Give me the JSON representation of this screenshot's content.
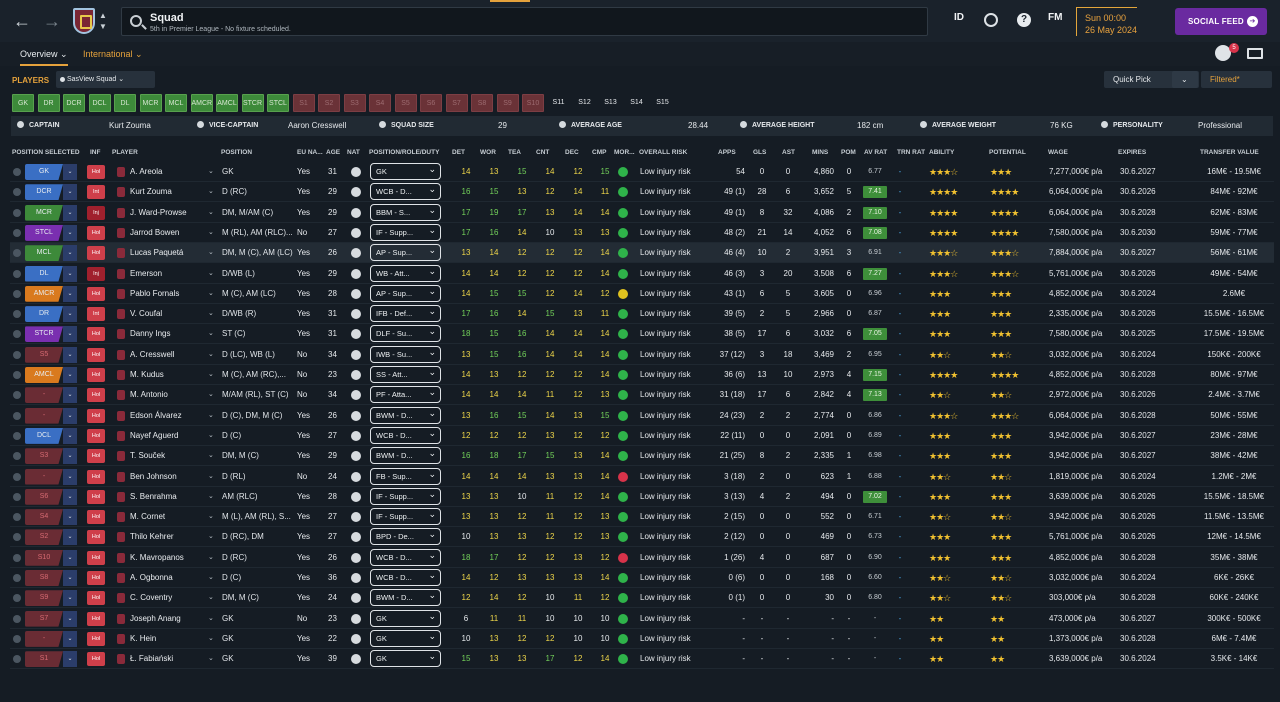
{
  "header": {
    "title": "Squad",
    "subtitle": "5th in Premier League - No fixture scheduled.",
    "id_label": "ID",
    "fm_label": "FM",
    "date_time": "Sun 00:00",
    "date_day": "26 May 2024",
    "social_feed": "SOCIAL FEED",
    "notifications": "5"
  },
  "tabs": [
    {
      "label": "Overview ⌄"
    },
    {
      "label": "International ⌄"
    }
  ],
  "toolbar": {
    "players_label": "PLAYERS",
    "view": "SasView Squad ⌄",
    "quick_pick": "Quick Pick",
    "quick_pick_caret": "⌄",
    "filtered": "Filtered*"
  },
  "chips": [
    {
      "label": "GK",
      "st": "g"
    },
    {
      "label": "DR",
      "st": "g"
    },
    {
      "label": "DCR",
      "st": "g"
    },
    {
      "label": "DCL",
      "st": "g"
    },
    {
      "label": "DL",
      "st": "g"
    },
    {
      "label": "MCR",
      "st": "g"
    },
    {
      "label": "MCL",
      "st": "g"
    },
    {
      "label": "AMCR",
      "st": "g"
    },
    {
      "label": "AMCL",
      "st": "g"
    },
    {
      "label": "STCR",
      "st": "g"
    },
    {
      "label": "STCL",
      "st": "g"
    },
    {
      "label": "S1",
      "st": "r"
    },
    {
      "label": "S2",
      "st": "r"
    },
    {
      "label": "S3",
      "st": "r"
    },
    {
      "label": "S4",
      "st": "r"
    },
    {
      "label": "S5",
      "st": "r"
    },
    {
      "label": "S6",
      "st": "r"
    },
    {
      "label": "S7",
      "st": "r"
    },
    {
      "label": "S8",
      "st": "r"
    },
    {
      "label": "S9",
      "st": "r"
    },
    {
      "label": "S10",
      "st": "r"
    },
    {
      "label": "S11",
      "st": "s"
    },
    {
      "label": "S12",
      "st": "s"
    },
    {
      "label": "S13",
      "st": "s"
    },
    {
      "label": "S14",
      "st": "s"
    },
    {
      "label": "S15",
      "st": "s"
    }
  ],
  "summary": {
    "captain_label": "CAPTAIN",
    "captain": "Kurt Zouma",
    "vice_label": "VICE-CAPTAIN",
    "vice": "Aaron Cresswell",
    "size_label": "SQUAD SIZE",
    "size": "29",
    "age_label": "AVERAGE AGE",
    "age": "28.44",
    "height_label": "AVERAGE HEIGHT",
    "height": "182 cm",
    "weight_label": "AVERAGE WEIGHT",
    "weight": "76 KG",
    "pers_label": "PERSONALITY",
    "pers": "Professional"
  },
  "columns": [
    "POSITION SELECTED",
    "INF",
    "PLAYER",
    "POSITION",
    "EU NA...",
    "AGE",
    "NAT",
    "POSITION/ROLE/DUTY",
    "DET",
    "WOR",
    "TEA",
    "CNT",
    "DEC",
    "CMP",
    "MOR...",
    "OVERALL RISK",
    "APPS",
    "GLS",
    "AST",
    "MINS",
    "POM",
    "AV RAT",
    "TRN RAT",
    "ABILITY",
    "POTENTIAL",
    "WAGE",
    "EXPIRES",
    "TRANSFER VALUE"
  ],
  "colors": {
    "accent": "#e5a23c",
    "social": "#6a2aa0",
    "pos_blue": "#3a6fc4",
    "pos_green": "#3d8a3a",
    "pos_purple": "#7a2fb0",
    "pos_orange": "#d97a1e",
    "pos_red": "#6a2c34"
  },
  "players": [
    {
      "pos": "GK",
      "pc": "blue",
      "inf": "Hol",
      "name": "A. Areola",
      "position": "GK",
      "eu": "Yes",
      "age": "31",
      "role": "GK",
      "det": "14",
      "wor": "13",
      "tea": "15",
      "cnt": "14",
      "dec": "12",
      "cmp": "15",
      "risk": "Low injury risk",
      "apps": "54",
      "gls": "0",
      "ast": "0",
      "mins": "4,860",
      "pom": "0",
      "avr": "6.77",
      "trn": "-",
      "ab": "★★★☆",
      "po": "★★★",
      "wage": "7,277,000€ p/a",
      "exp": "30.6.2027",
      "tv": "16M€ - 19.5M€"
    },
    {
      "pos": "DCR",
      "pc": "blue",
      "inf": "Int",
      "name": "Kurt Zouma",
      "position": "D (RC)",
      "eu": "Yes",
      "age": "29",
      "role": "WCB - D...",
      "det": "16",
      "wor": "15",
      "tea": "13",
      "cnt": "12",
      "dec": "14",
      "cmp": "11",
      "risk": "Low injury risk",
      "apps": "49 (1)",
      "gls": "28",
      "ast": "6",
      "mins": "3,652",
      "pom": "5",
      "avr": "7.41",
      "trn": "-",
      "ab": "★★★★",
      "po": "★★★★",
      "wage": "6,064,000€ p/a",
      "exp": "30.6.2026",
      "tv": "84M€ - 92M€"
    },
    {
      "pos": "MCR",
      "pc": "green",
      "inf": "Inj",
      "name": "J. Ward-Prowse",
      "position": "DM, M/AM (C)",
      "eu": "Yes",
      "age": "29",
      "role": "BBM - S...",
      "det": "17",
      "wor": "19",
      "tea": "17",
      "cnt": "13",
      "dec": "14",
      "cmp": "14",
      "risk": "Low injury risk",
      "apps": "49 (1)",
      "gls": "8",
      "ast": "32",
      "mins": "4,086",
      "pom": "2",
      "avr": "7.10",
      "trn": "-",
      "ab": "★★★★",
      "po": "★★★★",
      "wage": "6,064,000€ p/a",
      "exp": "30.6.2028",
      "tv": "62M€ - 83M€"
    },
    {
      "pos": "STCL",
      "pc": "purple",
      "inf": "Hol",
      "name": "Jarrod Bowen",
      "position": "M (RL), AM (RLC)...",
      "eu": "No",
      "age": "27",
      "role": "IF - Supp...",
      "det": "17",
      "wor": "16",
      "tea": "14",
      "cnt": "10",
      "dec": "13",
      "cmp": "13",
      "risk": "Low injury risk",
      "apps": "48 (2)",
      "gls": "21",
      "ast": "14",
      "mins": "4,052",
      "pom": "6",
      "avr": "7.08",
      "trn": "-",
      "ab": "★★★★",
      "po": "★★★★",
      "wage": "7,580,000€ p/a",
      "exp": "30.6.2030",
      "tv": "59M€ - 77M€"
    },
    {
      "pos": "MCL",
      "pc": "green",
      "inf": "Hol",
      "name": "Lucas Paquetá",
      "position": "DM, M (C), AM (LC)",
      "eu": "Yes",
      "age": "26",
      "role": "AP - Sup...",
      "det": "13",
      "wor": "14",
      "tea": "12",
      "cnt": "12",
      "dec": "12",
      "cmp": "14",
      "risk": "Low injury risk",
      "apps": "46 (4)",
      "gls": "10",
      "ast": "2",
      "mins": "3,951",
      "pom": "3",
      "avr": "6.91",
      "trn": "-",
      "ab": "★★★☆",
      "po": "★★★☆",
      "wage": "7,884,000€ p/a",
      "exp": "30.6.2027",
      "tv": "56M€ - 61M€",
      "hl": true
    },
    {
      "pos": "DL",
      "pc": "blue",
      "inf": "Inj",
      "name": "Emerson",
      "position": "D/WB (L)",
      "eu": "Yes",
      "age": "29",
      "role": "WB - Att...",
      "det": "14",
      "wor": "14",
      "tea": "12",
      "cnt": "12",
      "dec": "12",
      "cmp": "14",
      "risk": "Low injury risk",
      "apps": "46 (3)",
      "gls": "3",
      "ast": "20",
      "mins": "3,508",
      "pom": "6",
      "avr": "7.27",
      "trn": "-",
      "ab": "★★★☆",
      "po": "★★★☆",
      "wage": "5,761,000€ p/a",
      "exp": "30.6.2026",
      "tv": "49M€ - 54M€"
    },
    {
      "pos": "AMCR",
      "pc": "orange",
      "inf": "Hol",
      "name": "Pablo Fornals",
      "position": "M (C), AM (LC)",
      "eu": "Yes",
      "age": "28",
      "role": "AP - Sup...",
      "det": "14",
      "wor": "15",
      "tea": "15",
      "cnt": "12",
      "dec": "14",
      "cmp": "12",
      "risk": "Low injury risk",
      "apps": "43 (1)",
      "gls": "6",
      "ast": "5",
      "mins": "3,605",
      "pom": "0",
      "avr": "6.96",
      "trn": "-",
      "ab": "★★★",
      "po": "★★★",
      "wage": "4,852,000€ p/a",
      "exp": "30.6.2024",
      "tv": "2.6M€"
    },
    {
      "pos": "DR",
      "pc": "blue",
      "inf": "Int",
      "name": "V. Coufal",
      "position": "D/WB (R)",
      "eu": "Yes",
      "age": "31",
      "role": "IFB - Def...",
      "det": "17",
      "wor": "16",
      "tea": "14",
      "cnt": "15",
      "dec": "13",
      "cmp": "11",
      "risk": "Low injury risk",
      "apps": "39 (5)",
      "gls": "2",
      "ast": "5",
      "mins": "2,966",
      "pom": "0",
      "avr": "6.87",
      "trn": "-",
      "ab": "★★★",
      "po": "★★★",
      "wage": "2,335,000€ p/a",
      "exp": "30.6.2026",
      "tv": "15.5M€ - 16.5M€"
    },
    {
      "pos": "STCR",
      "pc": "purple",
      "inf": "Hol",
      "name": "Danny Ings",
      "position": "ST (C)",
      "eu": "Yes",
      "age": "31",
      "role": "DLF - Su...",
      "det": "18",
      "wor": "15",
      "tea": "16",
      "cnt": "14",
      "dec": "14",
      "cmp": "14",
      "risk": "Low injury risk",
      "apps": "38 (5)",
      "gls": "17",
      "ast": "6",
      "mins": "3,032",
      "pom": "6",
      "avr": "7.05",
      "trn": "-",
      "ab": "★★★",
      "po": "★★★",
      "wage": "7,580,000€ p/a",
      "exp": "30.6.2025",
      "tv": "17.5M€ - 19.5M€"
    },
    {
      "pos": "S5",
      "pc": "red",
      "inf": "Hol",
      "name": "A. Cresswell",
      "position": "D (LC), WB (L)",
      "eu": "No",
      "age": "34",
      "role": "IWB - Su...",
      "det": "13",
      "wor": "15",
      "tea": "16",
      "cnt": "14",
      "dec": "14",
      "cmp": "14",
      "risk": "Low injury risk",
      "apps": "37 (12)",
      "gls": "3",
      "ast": "18",
      "mins": "3,469",
      "pom": "2",
      "avr": "6.95",
      "trn": "-",
      "ab": "★★☆",
      "po": "★★☆",
      "wage": "3,032,000€ p/a",
      "exp": "30.6.2024",
      "tv": "150K€ - 200K€"
    },
    {
      "pos": "AMCL",
      "pc": "orange",
      "inf": "Hol",
      "name": "M. Kudus",
      "position": "M (C), AM (RC),...",
      "eu": "No",
      "age": "23",
      "role": "SS - Att...",
      "det": "14",
      "wor": "13",
      "tea": "12",
      "cnt": "12",
      "dec": "12",
      "cmp": "14",
      "risk": "Low injury risk",
      "apps": "36 (6)",
      "gls": "13",
      "ast": "10",
      "mins": "2,973",
      "pom": "4",
      "avr": "7.15",
      "trn": "-",
      "ab": "★★★★",
      "po": "★★★★",
      "wage": "4,852,000€ p/a",
      "exp": "30.6.2028",
      "tv": "80M€ - 97M€"
    },
    {
      "pos": "-",
      "pc": "red",
      "inf": "Hol",
      "name": "M. Antonio",
      "position": "M/AM (RL), ST (C)",
      "eu": "No",
      "age": "34",
      "role": "PF - Atta...",
      "det": "14",
      "wor": "14",
      "tea": "14",
      "cnt": "11",
      "dec": "12",
      "cmp": "13",
      "risk": "Low injury risk",
      "apps": "31 (18)",
      "gls": "17",
      "ast": "6",
      "mins": "2,842",
      "pom": "4",
      "avr": "7.13",
      "trn": "-",
      "ab": "★★☆",
      "po": "★★☆",
      "wage": "2,972,000€ p/a",
      "exp": "30.6.2026",
      "tv": "2.4M€ - 3.7M€"
    },
    {
      "pos": "-",
      "pc": "red",
      "inf": "Hol",
      "name": "Edson Álvarez",
      "position": "D (C), DM, M (C)",
      "eu": "Yes",
      "age": "26",
      "role": "BWM - D...",
      "det": "13",
      "wor": "16",
      "tea": "15",
      "cnt": "14",
      "dec": "13",
      "cmp": "15",
      "risk": "Low injury risk",
      "apps": "24 (23)",
      "gls": "2",
      "ast": "2",
      "mins": "2,774",
      "pom": "0",
      "avr": "6.86",
      "trn": "-",
      "ab": "★★★☆",
      "po": "★★★☆",
      "wage": "6,064,000€ p/a",
      "exp": "30.6.2028",
      "tv": "50M€ - 55M€"
    },
    {
      "pos": "DCL",
      "pc": "blue",
      "inf": "Hol",
      "name": "Nayef Aguerd",
      "position": "D (C)",
      "eu": "Yes",
      "age": "27",
      "role": "WCB - D...",
      "det": "12",
      "wor": "12",
      "tea": "12",
      "cnt": "13",
      "dec": "12",
      "cmp": "12",
      "risk": "Low injury risk",
      "apps": "22 (11)",
      "gls": "0",
      "ast": "0",
      "mins": "2,091",
      "pom": "0",
      "avr": "6.89",
      "trn": "-",
      "ab": "★★★",
      "po": "★★★",
      "wage": "3,942,000€ p/a",
      "exp": "30.6.2027",
      "tv": "23M€ - 28M€"
    },
    {
      "pos": "S3",
      "pc": "red",
      "inf": "Hol",
      "name": "T. Souček",
      "position": "DM, M (C)",
      "eu": "Yes",
      "age": "29",
      "role": "BWM - D...",
      "det": "16",
      "wor": "18",
      "tea": "17",
      "cnt": "15",
      "dec": "13",
      "cmp": "14",
      "risk": "Low injury risk",
      "apps": "21 (25)",
      "gls": "8",
      "ast": "2",
      "mins": "2,335",
      "pom": "1",
      "avr": "6.98",
      "trn": "-",
      "ab": "★★★",
      "po": "★★★",
      "wage": "3,942,000€ p/a",
      "exp": "30.6.2027",
      "tv": "38M€ - 42M€"
    },
    {
      "pos": "-",
      "pc": "red",
      "inf": "Hol",
      "name": "Ben Johnson",
      "position": "D (RL)",
      "eu": "No",
      "age": "24",
      "role": "FB - Sup...",
      "det": "14",
      "wor": "14",
      "tea": "14",
      "cnt": "13",
      "dec": "13",
      "cmp": "14",
      "risk": "Low injury risk",
      "apps": "3 (18)",
      "gls": "2",
      "ast": "0",
      "mins": "623",
      "pom": "1",
      "avr": "6.88",
      "trn": "-",
      "ab": "★★☆",
      "po": "★★☆",
      "wage": "1,819,000€ p/a",
      "exp": "30.6.2024",
      "tv": "1.2M€ - 2M€"
    },
    {
      "pos": "S6",
      "pc": "red",
      "inf": "Hol",
      "name": "S. Benrahma",
      "position": "AM (RLC)",
      "eu": "Yes",
      "age": "28",
      "role": "IF - Supp...",
      "det": "13",
      "wor": "13",
      "tea": "10",
      "cnt": "11",
      "dec": "12",
      "cmp": "14",
      "risk": "Low injury risk",
      "apps": "3 (13)",
      "gls": "4",
      "ast": "2",
      "mins": "494",
      "pom": "0",
      "avr": "7.02",
      "trn": "-",
      "ab": "★★★",
      "po": "★★★",
      "wage": "3,639,000€ p/a",
      "exp": "30.6.2026",
      "tv": "15.5M€ - 18.5M€"
    },
    {
      "pos": "S4",
      "pc": "red",
      "inf": "Hol",
      "name": "M. Cornet",
      "position": "M (L), AM (RL), S...",
      "eu": "Yes",
      "age": "27",
      "role": "IF - Supp...",
      "det": "13",
      "wor": "13",
      "tea": "12",
      "cnt": "11",
      "dec": "12",
      "cmp": "13",
      "risk": "Low injury risk",
      "apps": "2 (15)",
      "gls": "0",
      "ast": "0",
      "mins": "552",
      "pom": "0",
      "avr": "6.71",
      "trn": "-",
      "ab": "★★☆",
      "po": "★★☆",
      "wage": "3,942,000€ p/a",
      "exp": "30.6.2026",
      "tv": "11.5M€ - 13.5M€"
    },
    {
      "pos": "S2",
      "pc": "red",
      "inf": "Hol",
      "name": "Thilo Kehrer",
      "position": "D (RC), DM",
      "eu": "Yes",
      "age": "27",
      "role": "BPD - De...",
      "det": "10",
      "wor": "13",
      "tea": "13",
      "cnt": "12",
      "dec": "12",
      "cmp": "13",
      "risk": "Low injury risk",
      "apps": "2 (12)",
      "gls": "0",
      "ast": "0",
      "mins": "469",
      "pom": "0",
      "avr": "6.73",
      "trn": "-",
      "ab": "★★★",
      "po": "★★★",
      "wage": "5,761,000€ p/a",
      "exp": "30.6.2026",
      "tv": "12M€ - 14.5M€"
    },
    {
      "pos": "S10",
      "pc": "red",
      "inf": "Hol",
      "name": "K. Mavropanos",
      "position": "D (RC)",
      "eu": "Yes",
      "age": "26",
      "role": "WCB - D...",
      "det": "18",
      "wor": "17",
      "tea": "12",
      "cnt": "12",
      "dec": "13",
      "cmp": "12",
      "risk": "Low injury risk",
      "apps": "1 (26)",
      "gls": "4",
      "ast": "0",
      "mins": "687",
      "pom": "0",
      "avr": "6.90",
      "trn": "-",
      "ab": "★★★",
      "po": "★★★",
      "wage": "4,852,000€ p/a",
      "exp": "30.6.2028",
      "tv": "35M€ - 38M€"
    },
    {
      "pos": "S8",
      "pc": "red",
      "inf": "Hol",
      "name": "A. Ogbonna",
      "position": "D (C)",
      "eu": "Yes",
      "age": "36",
      "role": "WCB - D...",
      "det": "14",
      "wor": "12",
      "tea": "13",
      "cnt": "13",
      "dec": "13",
      "cmp": "14",
      "risk": "Low injury risk",
      "apps": "0 (6)",
      "gls": "0",
      "ast": "0",
      "mins": "168",
      "pom": "0",
      "avr": "6.60",
      "trn": "-",
      "ab": "★★☆",
      "po": "★★☆",
      "wage": "3,032,000€ p/a",
      "exp": "30.6.2024",
      "tv": "6K€ - 26K€"
    },
    {
      "pos": "S9",
      "pc": "red",
      "inf": "Hol",
      "name": "C. Coventry",
      "position": "DM, M (C)",
      "eu": "Yes",
      "age": "24",
      "role": "BWM - D...",
      "det": "12",
      "wor": "14",
      "tea": "12",
      "cnt": "10",
      "dec": "11",
      "cmp": "12",
      "risk": "Low injury risk",
      "apps": "0 (1)",
      "gls": "0",
      "ast": "0",
      "mins": "30",
      "pom": "0",
      "avr": "6.80",
      "trn": "-",
      "ab": "★★☆",
      "po": "★★☆",
      "wage": "303,000€ p/a",
      "exp": "30.6.2028",
      "tv": "60K€ - 240K€"
    },
    {
      "pos": "S7",
      "pc": "red",
      "inf": "Hol",
      "name": "Joseph Anang",
      "position": "GK",
      "eu": "No",
      "age": "23",
      "role": "GK",
      "det": "6",
      "wor": "11",
      "tea": "11",
      "cnt": "10",
      "dec": "10",
      "cmp": "10",
      "risk": "Low injury risk",
      "apps": "-",
      "gls": "-",
      "ast": "-",
      "mins": "-",
      "pom": "-",
      "avr": "-",
      "trn": "-",
      "ab": "★★",
      "po": "★★",
      "wage": "473,000€ p/a",
      "exp": "30.6.2027",
      "tv": "300K€ - 500K€"
    },
    {
      "pos": "-",
      "pc": "red",
      "inf": "Hol",
      "name": "K. Hein",
      "position": "GK",
      "eu": "Yes",
      "age": "22",
      "role": "GK",
      "det": "10",
      "wor": "13",
      "tea": "12",
      "cnt": "12",
      "dec": "10",
      "cmp": "10",
      "risk": "Low injury risk",
      "apps": "-",
      "gls": "-",
      "ast": "-",
      "mins": "-",
      "pom": "-",
      "avr": "-",
      "trn": "-",
      "ab": "★★",
      "po": "★★",
      "wage": "1,373,000€ p/a",
      "exp": "30.6.2028",
      "tv": "6M€ - 7.4M€"
    },
    {
      "pos": "S1",
      "pc": "red",
      "inf": "Hol",
      "name": "Ł. Fabiański",
      "position": "GK",
      "eu": "Yes",
      "age": "39",
      "role": "GK",
      "det": "15",
      "wor": "13",
      "tea": "13",
      "cnt": "17",
      "dec": "12",
      "cmp": "14",
      "risk": "Low injury risk",
      "apps": "-",
      "gls": "-",
      "ast": "-",
      "mins": "-",
      "pom": "-",
      "avr": "-",
      "trn": "-",
      "ab": "★★",
      "po": "★★",
      "wage": "3,639,000€ p/a",
      "exp": "30.6.2024",
      "tv": "3.5K€ - 14K€"
    }
  ]
}
